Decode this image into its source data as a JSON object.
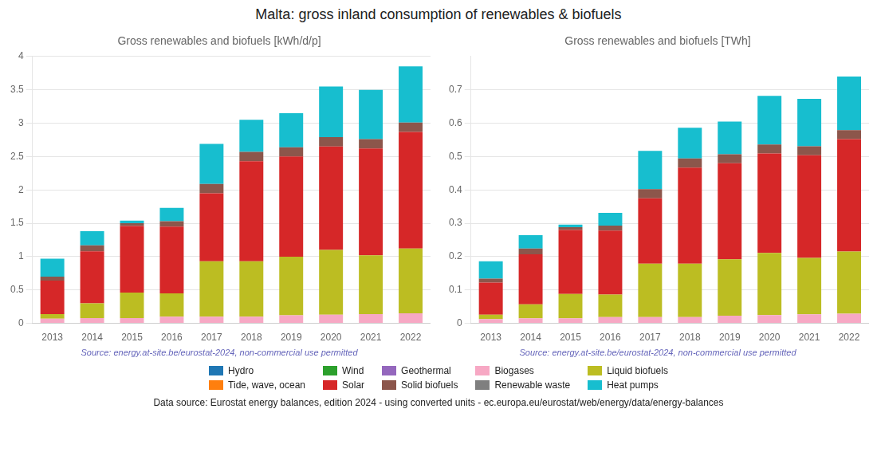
{
  "title": "Malta: gross inland consumption of renewables & biofuels",
  "annotations": [
    "Data source: Eurostat energy balances, edition 2024 - using converted units - ec.europa.eu/eurostat/web/energy/data/energy-balances"
  ],
  "chart_data": [
    {
      "type": "bar",
      "title": "Gross renewables and biofuels [kWh/d/p]",
      "annotations": [
        "Source: energy.at-site.be/eurostat-2024, non-commercial use permitted"
      ],
      "categories": [
        "2013",
        "2014",
        "2015",
        "2016",
        "2017",
        "2018",
        "2019",
        "2020",
        "2021",
        "2022"
      ],
      "series": [
        {
          "name": "Hydro",
          "color": "#1f77b4",
          "values": [
            0.0,
            0.0,
            0.0,
            0.0,
            0.0,
            0.0,
            0.0,
            0.0,
            0.0,
            0.0
          ]
        },
        {
          "name": "Wind",
          "color": "#2ca02c",
          "values": [
            0.0,
            0.0,
            0.0,
            0.0,
            0.0,
            0.0,
            0.0,
            0.0,
            0.0,
            0.0
          ]
        },
        {
          "name": "Geothermal",
          "color": "#9467bd",
          "values": [
            0.0,
            0.0,
            0.0,
            0.0,
            0.0,
            0.0,
            0.0,
            0.0,
            0.0,
            0.0
          ]
        },
        {
          "name": "Biogases",
          "color": "#f7a8c4",
          "values": [
            0.07,
            0.08,
            0.08,
            0.1,
            0.1,
            0.1,
            0.12,
            0.13,
            0.14,
            0.15
          ]
        },
        {
          "name": "Liquid biofuels",
          "color": "#bcbd22",
          "values": [
            0.07,
            0.22,
            0.38,
            0.35,
            0.83,
            0.83,
            0.88,
            0.97,
            0.88,
            0.97
          ]
        },
        {
          "name": "Tide, wave, ocean",
          "color": "#ff7f0e",
          "values": [
            0.0,
            0.0,
            0.0,
            0.0,
            0.0,
            0.0,
            0.0,
            0.0,
            0.0,
            0.0
          ]
        },
        {
          "name": "Solar",
          "color": "#d62728",
          "values": [
            0.5,
            0.78,
            1.0,
            1.0,
            1.02,
            1.5,
            1.5,
            1.55,
            1.6,
            1.75
          ]
        },
        {
          "name": "Solid biofuels",
          "color": "#8c564b",
          "values": [
            0.06,
            0.09,
            0.04,
            0.08,
            0.14,
            0.14,
            0.14,
            0.14,
            0.14,
            0.14
          ]
        },
        {
          "name": "Renewable waste",
          "color": "#7f7f7f",
          "values": [
            0.0,
            0.0,
            0.0,
            0.0,
            0.0,
            0.0,
            0.0,
            0.0,
            0.0,
            0.0
          ]
        },
        {
          "name": "Heat pumps",
          "color": "#17becf",
          "values": [
            0.27,
            0.21,
            0.04,
            0.2,
            0.6,
            0.48,
            0.51,
            0.76,
            0.74,
            0.84
          ]
        }
      ],
      "stacked": true,
      "ylim": [
        0,
        4
      ],
      "yticks": [
        0,
        0.5,
        1,
        1.5,
        2,
        2.5,
        3,
        3.5,
        4
      ],
      "grid": true,
      "legend": "bottom"
    },
    {
      "type": "bar",
      "title": "Gross renewables and biofuels [TWh]",
      "annotations": [
        "Source: energy.at-site.be/eurostat-2024, non-commercial use permitted"
      ],
      "categories": [
        "2013",
        "2014",
        "2015",
        "2016",
        "2017",
        "2018",
        "2019",
        "2020",
        "2021",
        "2022"
      ],
      "series": [
        {
          "name": "Hydro",
          "color": "#1f77b4",
          "values": [
            0.0,
            0.0,
            0.0,
            0.0,
            0.0,
            0.0,
            0.0,
            0.0,
            0.0,
            0.0
          ]
        },
        {
          "name": "Wind",
          "color": "#2ca02c",
          "values": [
            0.0,
            0.0,
            0.0,
            0.0,
            0.0,
            0.0,
            0.0,
            0.0,
            0.0,
            0.0
          ]
        },
        {
          "name": "Geothermal",
          "color": "#9467bd",
          "values": [
            0.0,
            0.0,
            0.0,
            0.0,
            0.0,
            0.0,
            0.0,
            0.0,
            0.0,
            0.0
          ]
        },
        {
          "name": "Biogases",
          "color": "#f7a8c4",
          "values": [
            0.013,
            0.015,
            0.015,
            0.019,
            0.019,
            0.019,
            0.023,
            0.025,
            0.027,
            0.029
          ]
        },
        {
          "name": "Liquid biofuels",
          "color": "#bcbd22",
          "values": [
            0.013,
            0.042,
            0.073,
            0.067,
            0.16,
            0.16,
            0.169,
            0.186,
            0.169,
            0.186
          ]
        },
        {
          "name": "Tide, wave, ocean",
          "color": "#ff7f0e",
          "values": [
            0.0,
            0.0,
            0.0,
            0.0,
            0.0,
            0.0,
            0.0,
            0.0,
            0.0,
            0.0
          ]
        },
        {
          "name": "Solar",
          "color": "#d62728",
          "values": [
            0.096,
            0.15,
            0.192,
            0.192,
            0.196,
            0.288,
            0.288,
            0.298,
            0.308,
            0.337
          ]
        },
        {
          "name": "Solid biofuels",
          "color": "#8c564b",
          "values": [
            0.012,
            0.017,
            0.008,
            0.015,
            0.027,
            0.027,
            0.027,
            0.027,
            0.027,
            0.027
          ]
        },
        {
          "name": "Renewable waste",
          "color": "#7f7f7f",
          "values": [
            0.0,
            0.0,
            0.0,
            0.0,
            0.0,
            0.0,
            0.0,
            0.0,
            0.0,
            0.0
          ]
        },
        {
          "name": "Heat pumps",
          "color": "#17becf",
          "values": [
            0.052,
            0.04,
            0.008,
            0.038,
            0.115,
            0.092,
            0.098,
            0.146,
            0.142,
            0.161
          ]
        }
      ],
      "stacked": true,
      "ylim": [
        0,
        0.8
      ],
      "yticks": [
        0,
        0.1,
        0.2,
        0.3,
        0.4,
        0.5,
        0.6,
        0.7
      ],
      "grid": true,
      "legend": "bottom"
    }
  ]
}
